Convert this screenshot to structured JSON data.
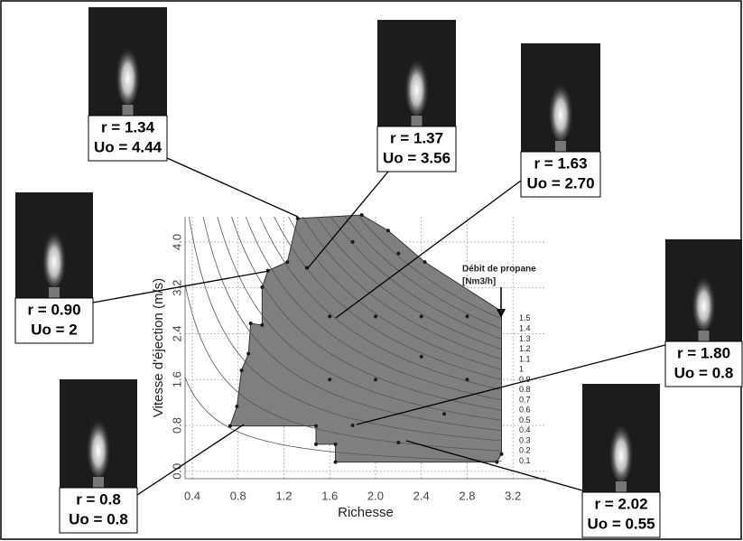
{
  "chart_data": {
    "type": "scatter",
    "xlabel": "Richesse",
    "ylabel": "Vitesse d'éjection (m/s)",
    "xlim": [
      0.337,
      3.49
    ],
    "ylim": [
      -0.13,
      4.44
    ],
    "xticks": [
      0.4,
      0.8,
      1.2,
      1.6,
      {
        "value": 2.0,
        "label": "2.0"
      },
      2.4,
      2.8,
      3.2
    ],
    "yticks": [
      {
        "value": 0,
        "label": "0.0"
      },
      0.8,
      1.6,
      2.4,
      3.2,
      {
        "value": 4.0,
        "label": "4.0"
      }
    ],
    "grid": true,
    "region": {
      "color": "#7f7f7f",
      "x": [
        1.32,
        1.23,
        1.06,
        1.01,
        1.01,
        0.91,
        0.89,
        0.83,
        0.79,
        0.73,
        1.48,
        1.48,
        1.65,
        1.65,
        3.06,
        3.1,
        3.1,
        2.43,
        2.11,
        1.88
      ],
      "values": [
        4.41,
        3.65,
        3.5,
        3.21,
        2.55,
        2.58,
        2.05,
        1.76,
        1.13,
        0.79,
        0.79,
        0.47,
        0.47,
        0.16,
        0.16,
        0.3,
        2.79,
        3.65,
        4.2,
        4.47
      ]
    },
    "points": {
      "color": "#1a1a1a",
      "x": [
        1.8,
        2.2,
        1.4,
        1.6,
        2.0,
        2.4,
        2.8,
        1.8,
        2.2,
        2.6,
        2.0,
        1.6,
        2.4,
        2.8
      ],
      "values": [
        4.0,
        3.8,
        3.55,
        2.7,
        2.7,
        2.7,
        2.7,
        0.8,
        0.5,
        1.0,
        1.6,
        1.6,
        2.0,
        1.6
      ]
    },
    "flow_title": [
      "Débit de propane",
      "[Nm3/h]"
    ],
    "flow_levels": [
      1.5,
      1.4,
      1.3,
      1.2,
      1.1,
      1,
      0.9,
      0.8,
      0.7,
      0.6,
      0.5,
      0.4,
      0.3,
      0.2,
      0.1
    ],
    "callouts": [
      [
        "r = 1.34",
        "Uo = 4.44"
      ],
      [
        "r = 1.37",
        "Uo = 3.56"
      ],
      [
        "r = 1.63",
        "Uo = 2.70"
      ],
      [
        "r = 0.90",
        "Uo = 2"
      ],
      [
        "r = 0.8",
        "Uo = 0.8"
      ],
      [
        "r = 1.80",
        "Uo = 0.8"
      ],
      [
        "r = 2.02",
        "Uo = 0.55"
      ]
    ]
  }
}
